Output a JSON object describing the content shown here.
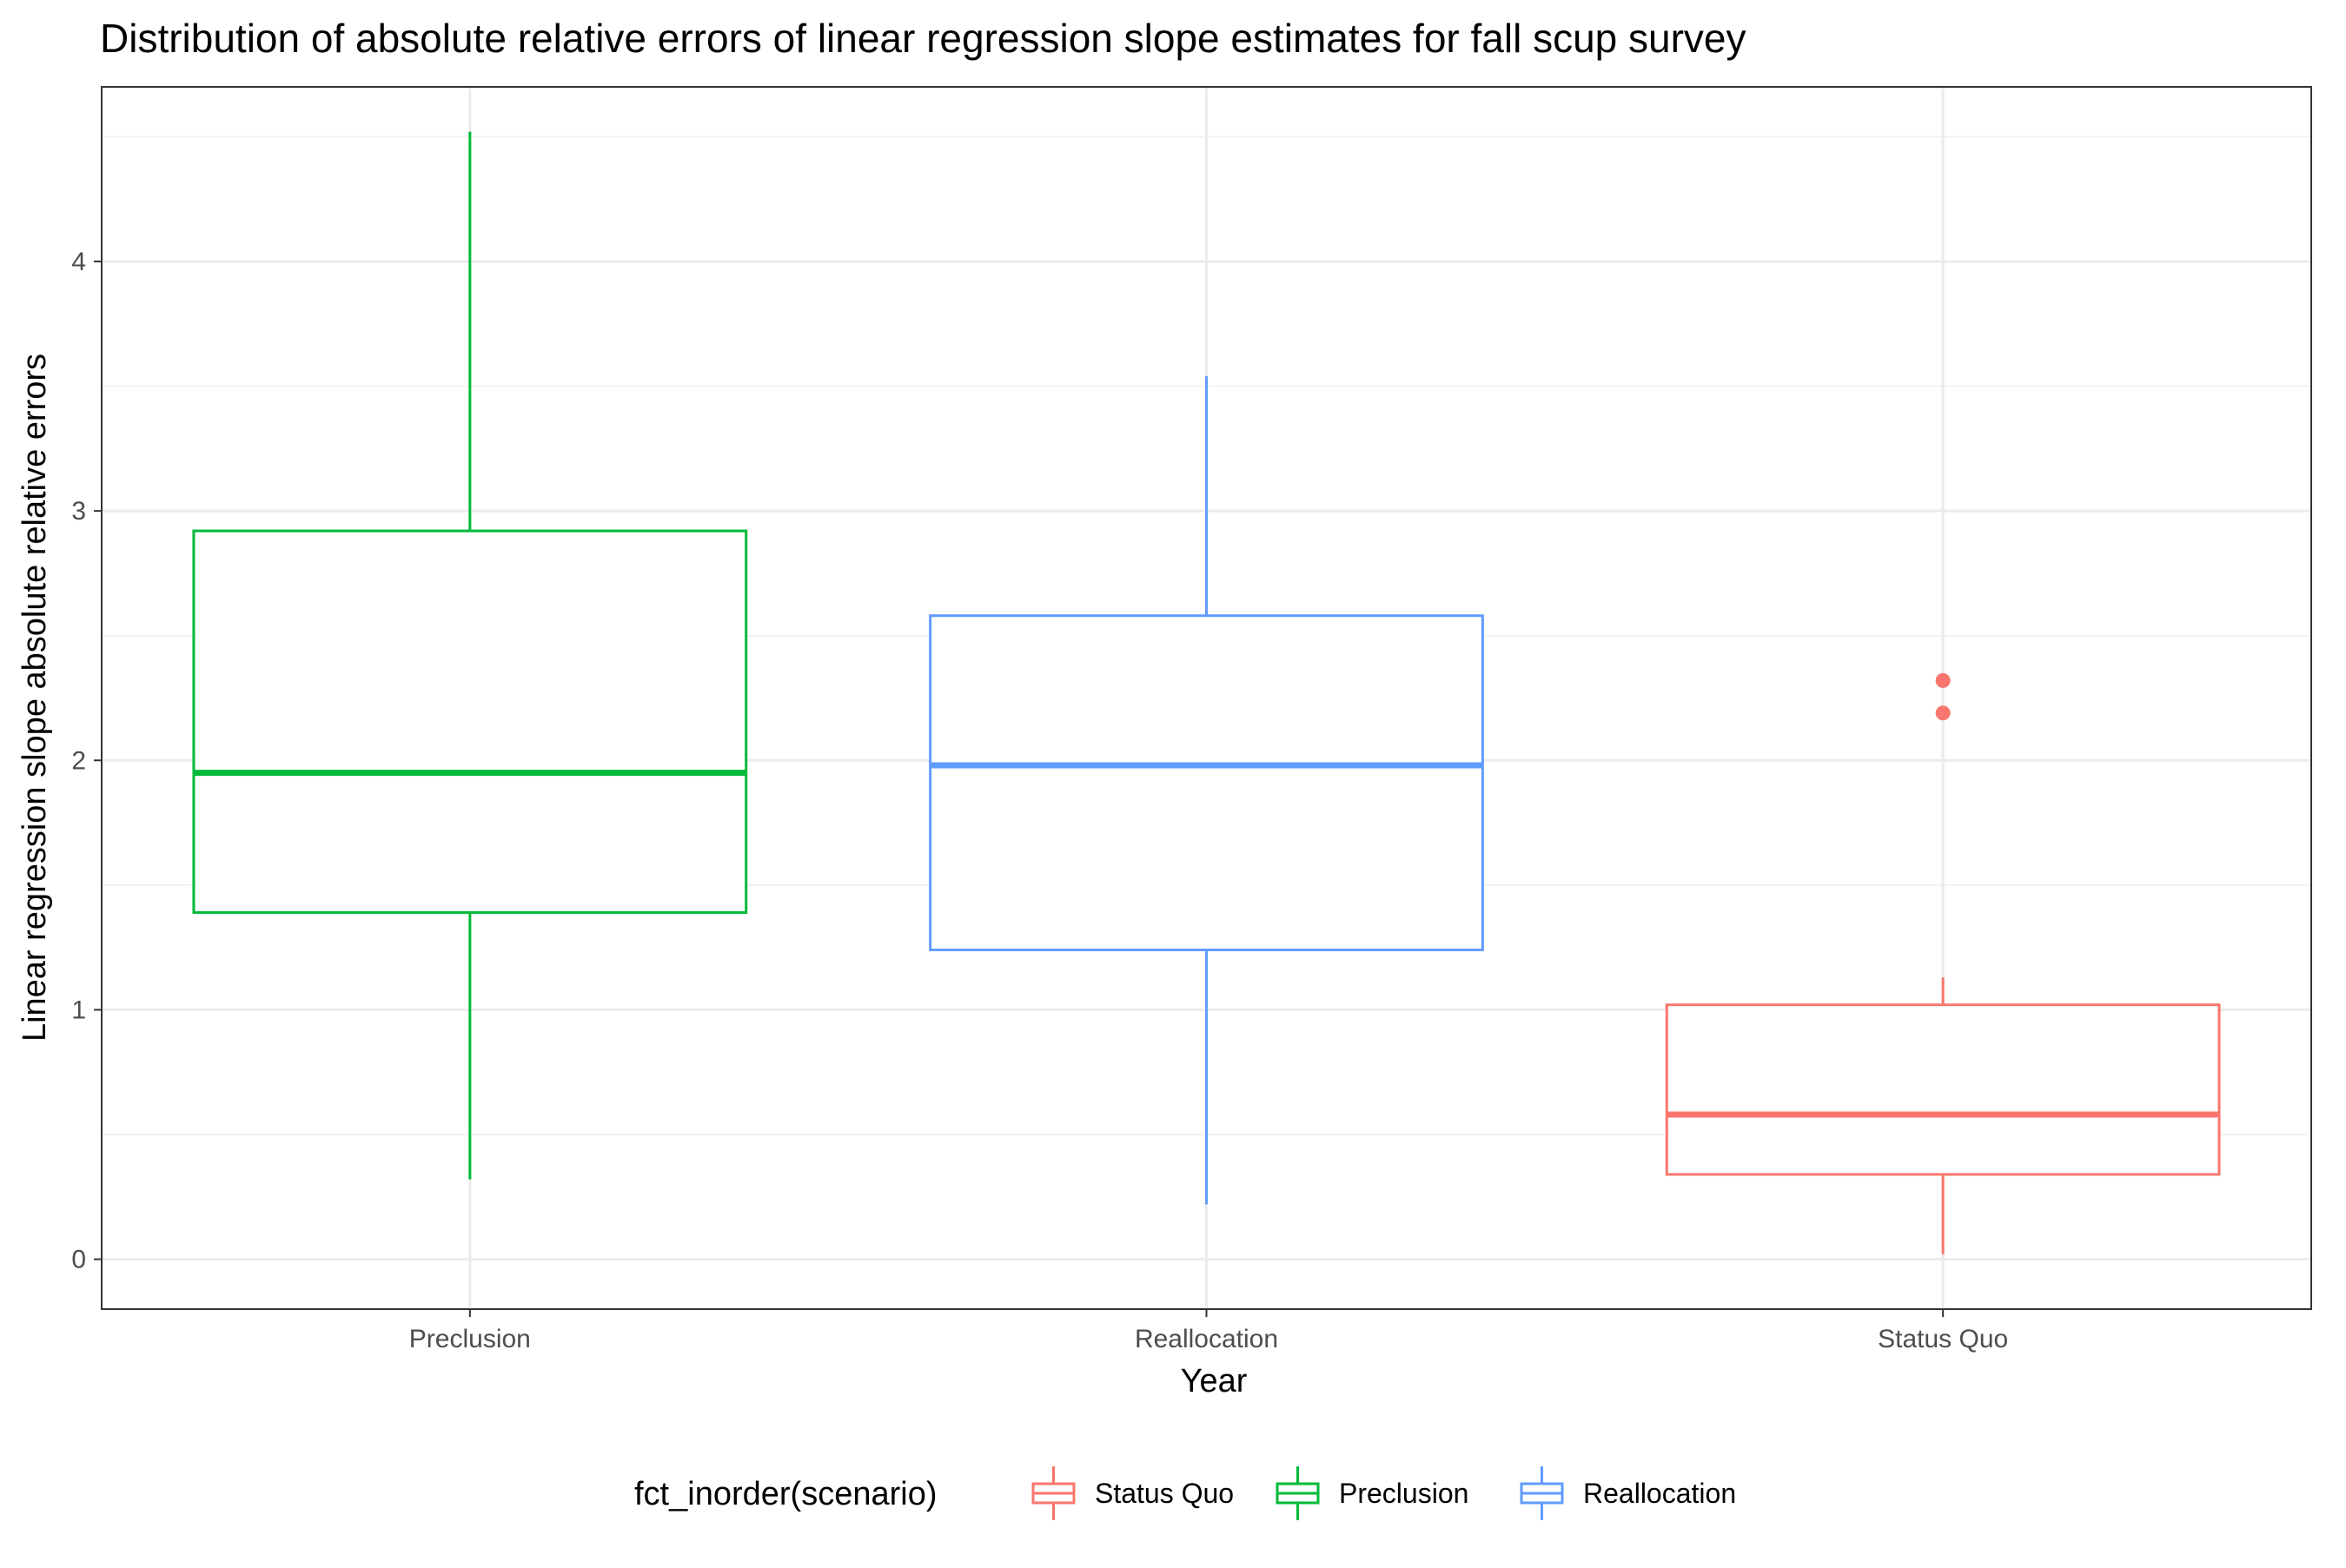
{
  "chart_data": {
    "type": "boxplot",
    "title": "Distribution of absolute relative errors of linear regression slope estimates for fall scup survey",
    "xlabel": "Year",
    "ylabel": "Linear regression slope absolute relative errors",
    "categories": [
      "Preclusion",
      "Reallocation",
      "Status Quo"
    ],
    "ylim": [
      -0.2,
      4.7
    ],
    "yticks": [
      0,
      1,
      2,
      3,
      4
    ],
    "grid": true,
    "legend": {
      "title": "fct_inorder(scenario)",
      "position": "bottom",
      "entries": [
        "Status Quo",
        "Preclusion",
        "Reallocation"
      ]
    },
    "boxes": [
      {
        "category": "Preclusion",
        "series": "Preclusion",
        "color": "#00BA38",
        "min": 0.32,
        "q1": 1.39,
        "median": 1.95,
        "q3": 2.92,
        "max": 4.52,
        "outliers": []
      },
      {
        "category": "Reallocation",
        "series": "Reallocation",
        "color": "#619CFF",
        "min": 0.22,
        "q1": 1.24,
        "median": 1.98,
        "q3": 2.58,
        "max": 3.54,
        "outliers": []
      },
      {
        "category": "Status Quo",
        "series": "Status Quo",
        "color": "#F8766D",
        "min": 0.02,
        "q1": 0.34,
        "median": 0.58,
        "q3": 1.02,
        "max": 1.13,
        "outliers": [
          2.19,
          2.32
        ]
      }
    ]
  }
}
